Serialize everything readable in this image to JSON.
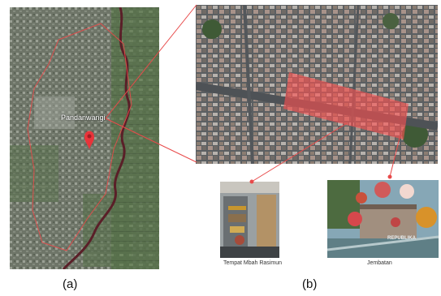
{
  "panel_a": {
    "place_label": "Pandanwangi",
    "label": "(a)"
  },
  "panel_b": {
    "label": "(b)"
  },
  "photos": [
    {
      "caption": "Tempat Mbah Rasimun"
    },
    {
      "caption": "Jembatan",
      "watermark": "REPUBLIKA"
    }
  ],
  "colors": {
    "boundary": "#e84a4a",
    "highlight": "#ff5050",
    "marker": "#e8343a",
    "river": "#5a1f28"
  },
  "icons": [
    "location-pin-icon"
  ]
}
